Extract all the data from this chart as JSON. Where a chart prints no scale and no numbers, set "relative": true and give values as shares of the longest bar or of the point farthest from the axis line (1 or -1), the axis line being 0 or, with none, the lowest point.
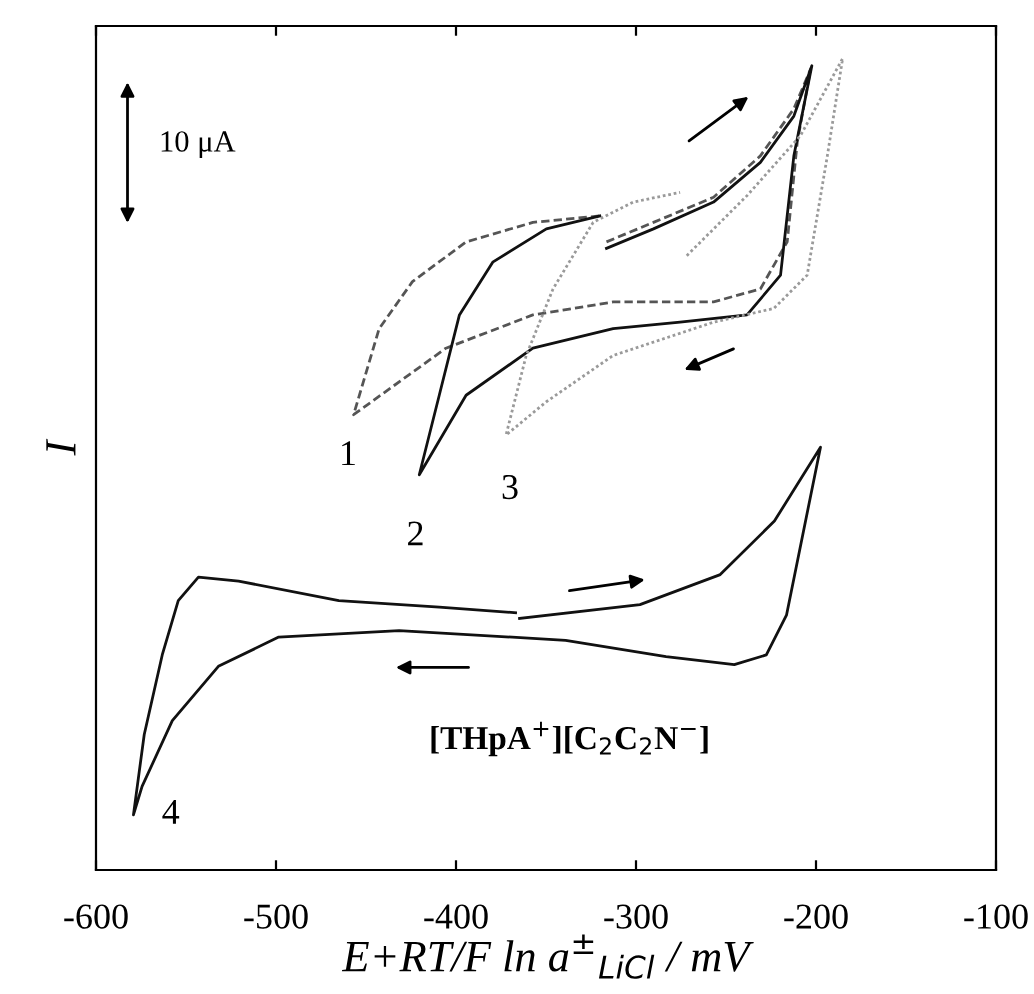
{
  "chart_data": {
    "type": "line",
    "relative": true,
    "xlabel": "E+RT/F ln a$^{±}$$_{LiCl}$ / mV",
    "ylabel": "I",
    "xlim": [
      -600,
      -100
    ],
    "xticks": [
      -600,
      -500,
      -400,
      -300,
      -200,
      -100
    ],
    "grid": false,
    "legend": false,
    "annotations": [
      "10 μA",
      "[THpA$^{+}$][C$_{2}$C$_{2}$N$^{−}$]",
      "1",
      "2",
      "3",
      "4"
    ],
    "series": [
      {
        "color": "#555555",
        "line_style": "dashed",
        "x": [
          -316.4,
          -290.3,
          -256.9,
          -230.9,
          -212.3,
          -203.0,
          -210.4,
          -216.0,
          -230.9,
          -256.9,
          -312.7,
          -357.3,
          -405.6,
          -456.9,
          -442.7,
          -424.2,
          -394.4,
          -357.3,
          -320.1
        ],
        "values": [
          0.774,
          0.798,
          0.829,
          0.88,
          0.938,
          0.987,
          0.897,
          0.774,
          0.716,
          0.7,
          0.7,
          0.684,
          0.643,
          0.561,
          0.667,
          0.725,
          0.774,
          0.798,
          0.806
        ]
      },
      {
        "color": "#111111",
        "line_style": "solid",
        "x": [
          -316.4,
          -290.3,
          -256.9,
          -230.9,
          -212.3,
          -202.3,
          -212.3,
          -219.7,
          -238.3,
          -275.5,
          -312.7,
          -357.3,
          -394.4,
          -420.4,
          -409.3,
          -398.1,
          -379.6,
          -349.8,
          -320.1
        ],
        "values": [
          0.766,
          0.79,
          0.823,
          0.872,
          0.929,
          0.991,
          0.88,
          0.733,
          0.684,
          0.675,
          0.667,
          0.643,
          0.585,
          0.487,
          0.585,
          0.684,
          0.749,
          0.79,
          0.806
        ]
      },
      {
        "color": "#9a9a9a",
        "line_style": "dotted",
        "x": [
          -271.8,
          -238.3,
          -208.6,
          -185.2,
          -193.7,
          -204.9,
          -223.4,
          -256.9,
          -312.7,
          -349.8,
          -372.2,
          -361.0,
          -346.1,
          -323.8,
          -301.5,
          -275.5
        ],
        "values": [
          0.757,
          0.831,
          0.905,
          1,
          0.88,
          0.733,
          0.692,
          0.675,
          0.634,
          0.577,
          0.536,
          0.634,
          0.716,
          0.798,
          0.823,
          0.835
        ]
      },
      {
        "color": "#111111",
        "line_style": "solid",
        "x": [
          -364.7,
          -297.8,
          -253.2,
          -223.1,
          -197.5,
          -216.4,
          -227.6,
          -245.4,
          -283.3,
          -339.1,
          -431.6,
          -498.5,
          -532.0,
          -557.6,
          -574.4,
          -579.2,
          -573.2,
          -563.2,
          -554.3,
          -543.1,
          -520.8,
          -465.1,
          -409.3,
          -366.9
        ],
        "values": [
          0.31,
          0.327,
          0.364,
          0.43,
          0.521,
          0.314,
          0.265,
          0.253,
          0.263,
          0.283,
          0.295,
          0.287,
          0.251,
          0.184,
          0.103,
          0.068,
          0.167,
          0.265,
          0.332,
          0.361,
          0.356,
          0.332,
          0.324,
          0.317
        ]
      }
    ]
  }
}
